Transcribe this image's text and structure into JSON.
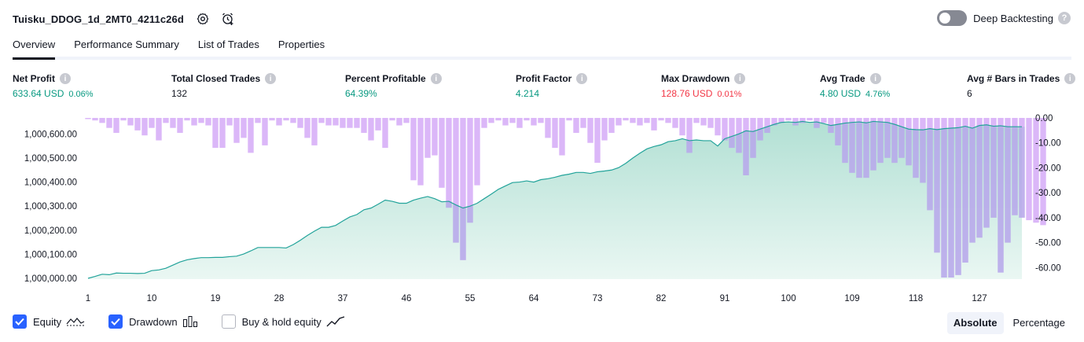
{
  "header": {
    "title": "Tuisku_DDOG_1d_2MT0_4211c26d",
    "settings_icon": "gear-icon",
    "add_alert_icon": "alarm-plus-icon",
    "deep_backtesting_label": "Deep Backtesting",
    "deep_backtesting_on": false,
    "help_icon": "?"
  },
  "tabs": [
    {
      "label": "Overview",
      "active": true
    },
    {
      "label": "Performance Summary",
      "active": false
    },
    {
      "label": "List of Trades",
      "active": false
    },
    {
      "label": "Properties",
      "active": false
    }
  ],
  "metrics": [
    {
      "label": "Net Profit",
      "value": "633.64 USD",
      "pct": "0.06%",
      "color": "green"
    },
    {
      "label": "Total Closed Trades",
      "value": "132",
      "pct": "",
      "color": "dark"
    },
    {
      "label": "Percent Profitable",
      "value": "64.39%",
      "pct": "",
      "color": "green"
    },
    {
      "label": "Profit Factor",
      "value": "4.214",
      "pct": "",
      "color": "green"
    },
    {
      "label": "Max Drawdown",
      "value": "128.76 USD",
      "pct": "0.01%",
      "color": "red"
    },
    {
      "label": "Avg Trade",
      "value": "4.80 USD",
      "pct": "4.76%",
      "color": "green"
    },
    {
      "label": "Avg # Bars in Trades",
      "value": "6",
      "pct": "",
      "color": "dark"
    }
  ],
  "info_icon": "i",
  "colors": {
    "equity_line": "#22a39a",
    "equity_fill_top": "#b2e0d4",
    "equity_fill_bottom": "#eaf7f3",
    "drawdown_bar": "#cf9ff5",
    "drawdown_overlap": "#a9aee3",
    "profit": "#089981",
    "loss": "#f23645",
    "checkbox": "#2962ff"
  },
  "legend": {
    "equity": {
      "label": "Equity",
      "checked": true,
      "icon": "equity-line-icon"
    },
    "drawdown": {
      "label": "Drawdown",
      "checked": true,
      "icon": "drawdown-bars-icon"
    },
    "buy_hold": {
      "label": "Buy & hold equity",
      "checked": false,
      "icon": "buy-hold-line-icon"
    }
  },
  "modes": [
    {
      "label": "Absolute",
      "active": true
    },
    {
      "label": "Percentage",
      "active": false
    }
  ],
  "chart_data": {
    "type": "line",
    "x_tick_labels": [
      "1",
      "10",
      "19",
      "28",
      "37",
      "46",
      "55",
      "64",
      "73",
      "82",
      "91",
      "100",
      "109",
      "118",
      "127"
    ],
    "x_ticks": [
      1,
      10,
      19,
      28,
      37,
      46,
      55,
      64,
      73,
      82,
      91,
      100,
      109,
      118,
      127
    ],
    "xlim": [
      1,
      133
    ],
    "left_axis": {
      "label": "Equity",
      "ticks": [
        "1,000,000.00",
        "1,000,100.00",
        "1,000,200.00",
        "1,000,300.00",
        "1,000,400.00",
        "1,000,500.00",
        "1,000,600.00"
      ],
      "ylim": [
        1000000,
        1000660
      ]
    },
    "right_axis": {
      "label": "Drawdown",
      "ticks": [
        "0.00",
        "-10.00",
        "-20.00",
        "-30.00",
        "-40.00",
        "-50.00",
        "-60.00"
      ],
      "ylim": [
        -64,
        0
      ]
    },
    "series": [
      {
        "name": "Equity",
        "values": [
          1000000,
          1000008,
          1000017,
          1000015,
          1000022,
          1000021,
          1000021,
          1000020,
          1000021,
          1000032,
          1000035,
          1000042,
          1000055,
          1000068,
          1000077,
          1000082,
          1000086,
          1000086,
          1000087,
          1000087,
          1000090,
          1000092,
          1000101,
          1000114,
          1000128,
          1000128,
          1000128,
          1000128,
          1000126,
          1000140,
          1000158,
          1000178,
          1000196,
          1000212,
          1000212,
          1000220,
          1000238,
          1000255,
          1000265,
          1000285,
          1000292,
          1000308,
          1000325,
          1000320,
          1000312,
          1000312,
          1000325,
          1000333,
          1000340,
          1000331,
          1000318,
          1000320,
          1000305,
          1000292,
          1000300,
          1000312,
          1000331,
          1000350,
          1000370,
          1000384,
          1000398,
          1000400,
          1000405,
          1000400,
          1000410,
          1000414,
          1000420,
          1000428,
          1000433,
          1000440,
          1000440,
          1000436,
          1000443,
          1000446,
          1000450,
          1000460,
          1000478,
          1000500,
          1000520,
          1000538,
          1000548,
          1000555,
          1000568,
          1000572,
          1000580,
          1000572,
          1000575,
          1000572,
          1000572,
          1000550,
          1000580,
          1000590,
          1000600,
          1000613,
          1000610,
          1000620,
          1000630,
          1000640,
          1000648,
          1000650,
          1000648,
          1000652,
          1000648,
          1000650,
          1000643,
          1000635,
          1000640,
          1000645,
          1000648,
          1000650,
          1000646,
          1000652,
          1000650,
          1000648,
          1000640,
          1000630,
          1000620,
          1000618,
          1000617,
          1000622,
          1000618,
          1000622,
          1000624,
          1000626,
          1000632,
          1000624,
          1000635,
          1000638,
          1000632,
          1000634,
          1000630,
          1000630,
          1000630
        ]
      },
      {
        "name": "Drawdown",
        "values": [
          0,
          -1,
          -2,
          -4,
          -6,
          -1,
          -3,
          -5,
          -7,
          -4,
          -9,
          -2,
          -4,
          -6,
          -1,
          -3,
          -2,
          -3,
          -12,
          -12,
          -3,
          -10,
          -8,
          -14,
          -2,
          -11,
          -1,
          -3,
          -1,
          -2,
          -4,
          -8,
          -11,
          -2,
          -3,
          -3,
          -4,
          -4,
          -4,
          -6,
          -9,
          -5,
          -12,
          -1,
          -3,
          -2,
          -25,
          -27,
          -16,
          -15,
          -28,
          -36,
          -50,
          -57,
          -42,
          -27,
          -4,
          -2,
          -1,
          -3,
          -2,
          -4,
          -1,
          -3,
          -2,
          -8,
          -12,
          -15,
          -1,
          -6,
          -4,
          -10,
          -18,
          -9,
          -6,
          -3,
          -1,
          -2,
          -3,
          -2,
          -5,
          -1,
          -2,
          -4,
          -7,
          -14,
          -2,
          -3,
          -4,
          -7,
          -9,
          -12,
          -14,
          -23,
          -16,
          -9,
          -6,
          -3,
          -2,
          -1,
          -3,
          -2,
          -1,
          -4,
          -2,
          -6,
          -11,
          -18,
          -22,
          -24,
          -24,
          -21,
          -18,
          -16,
          -18,
          -16,
          -19,
          -24,
          -26,
          -37,
          -54,
          -64,
          -64,
          -63,
          -58,
          -50,
          -48,
          -44,
          -40,
          -62,
          -50,
          -39,
          -40,
          -41,
          -42,
          -43
        ]
      }
    ]
  }
}
